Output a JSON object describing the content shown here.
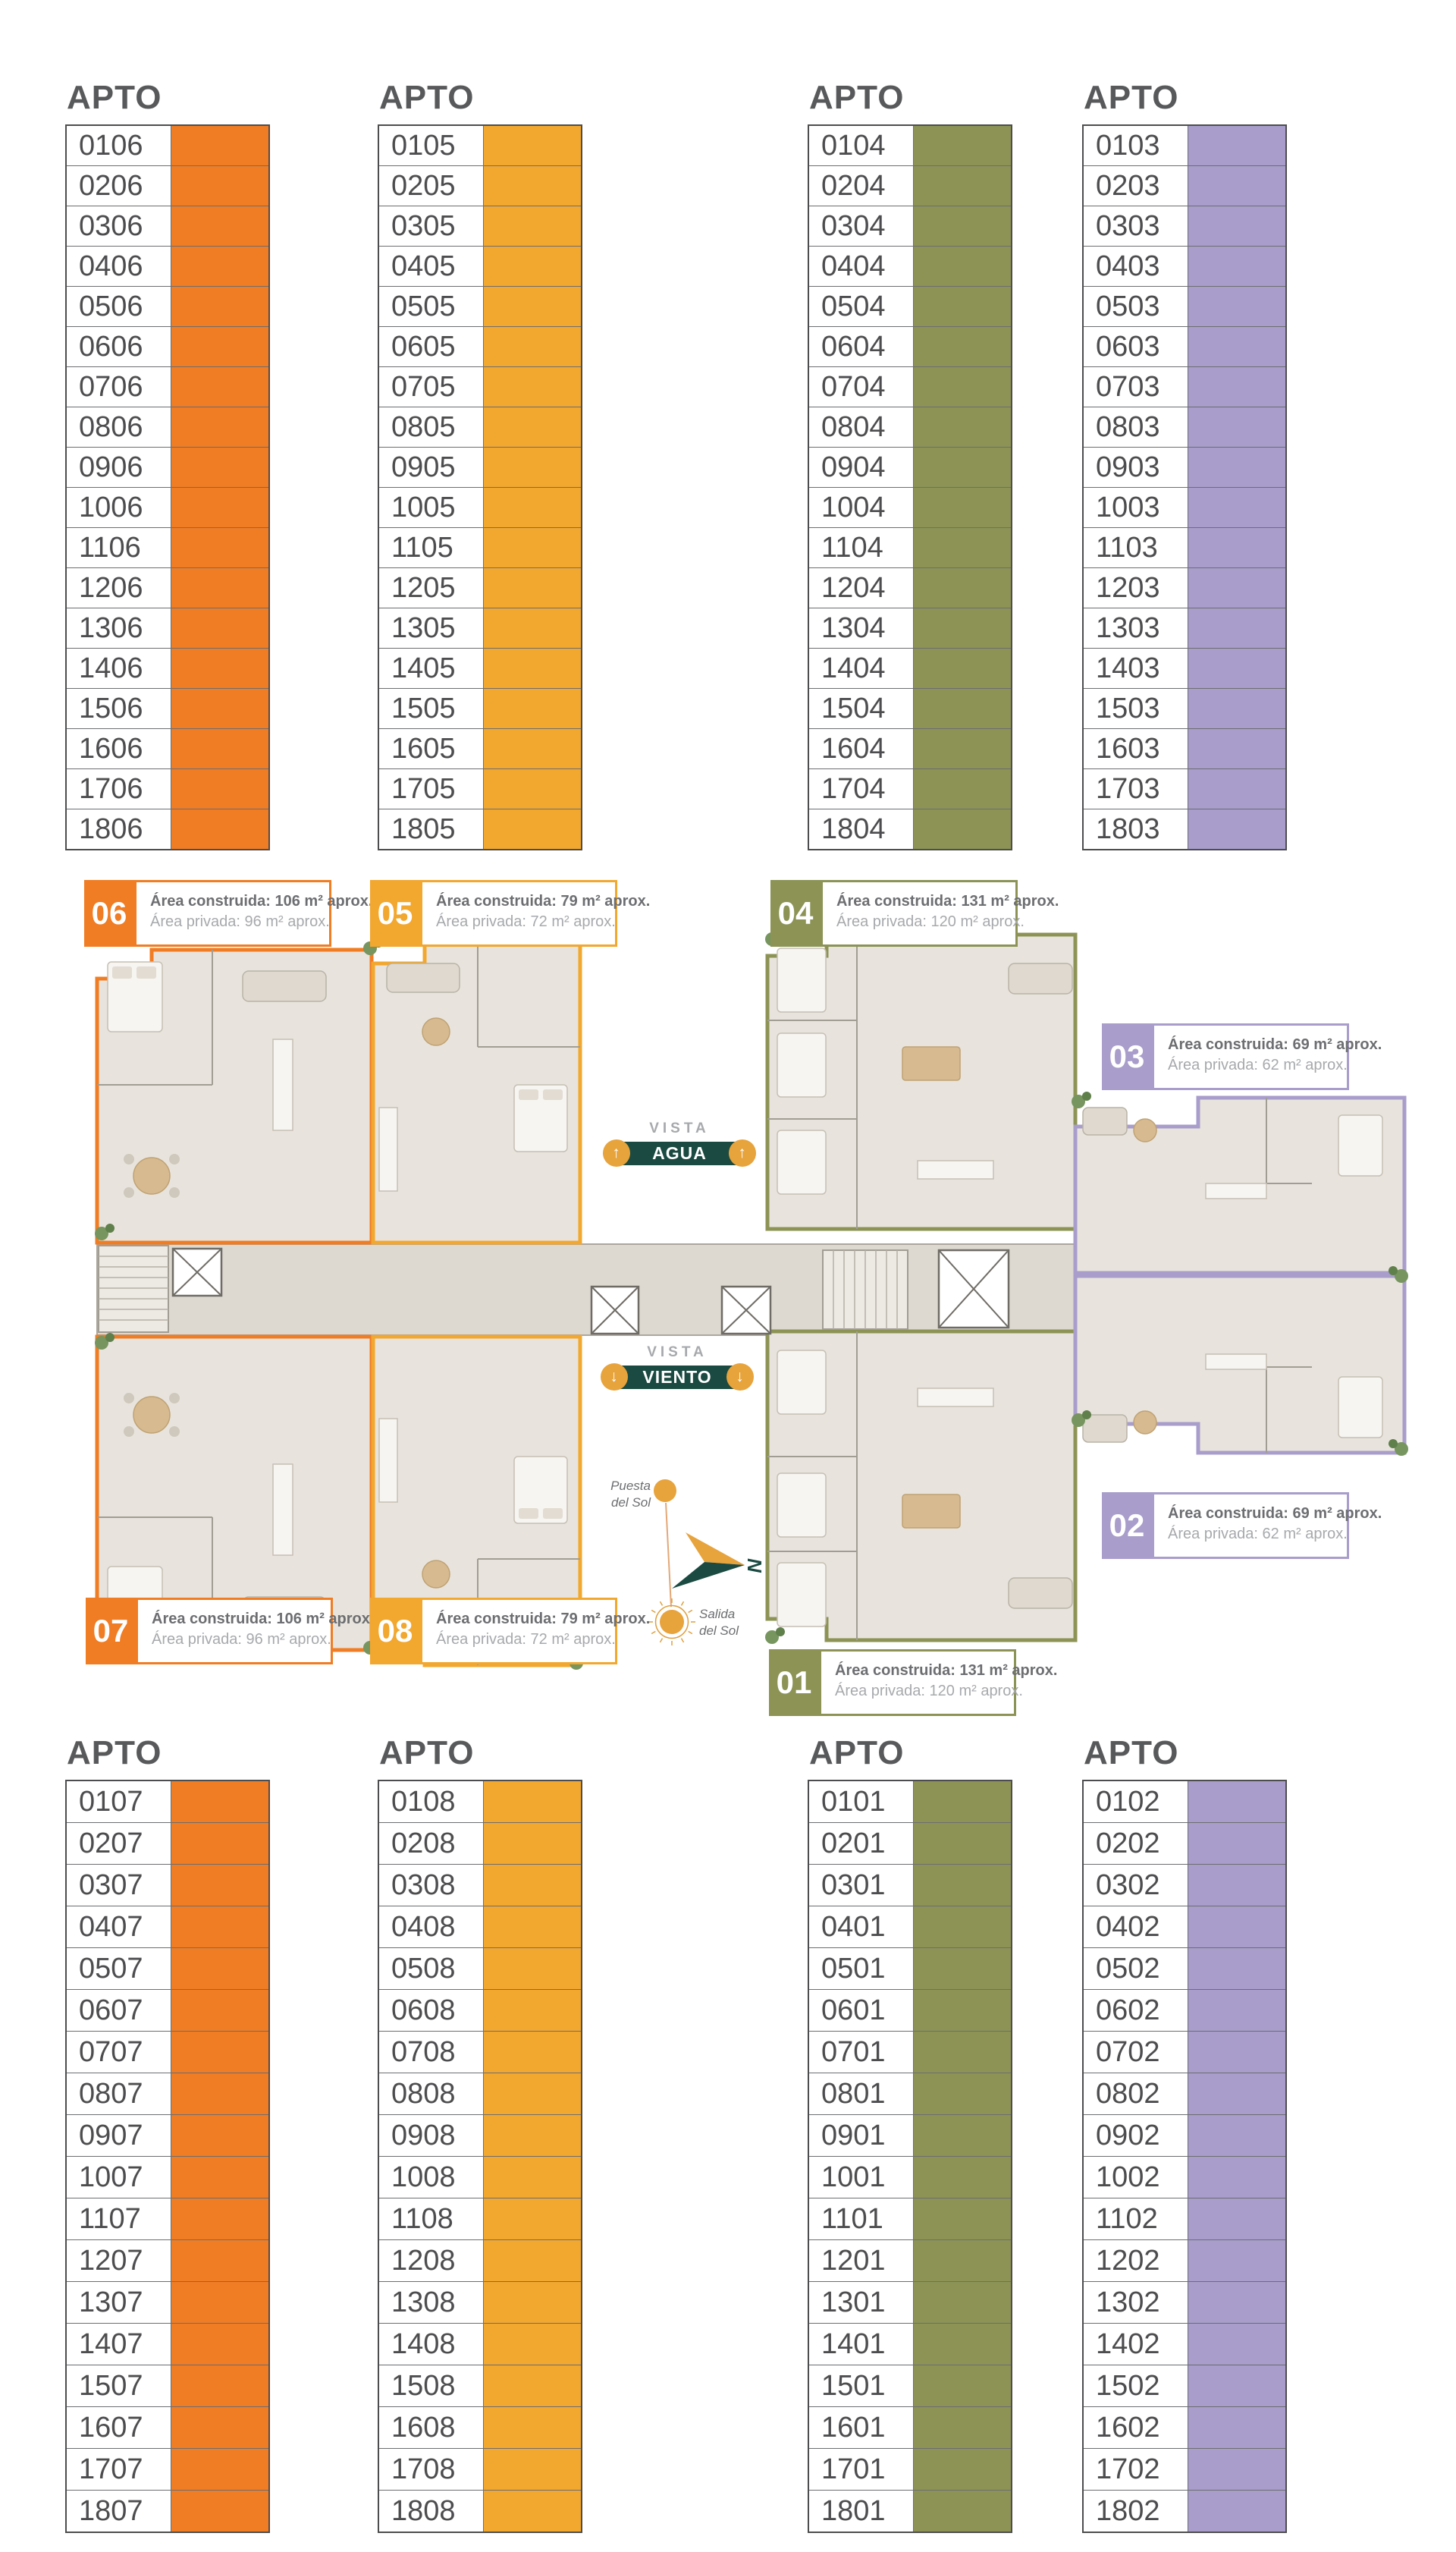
{
  "header_label": "APTO",
  "palette": {
    "orange": "#F07C23",
    "amber": "#F2A72F",
    "green": "#8C9355",
    "purple": "#A89DCB",
    "teal": "#1A4A41",
    "arrow_orange": "#E7A33C",
    "header_gray": "#58595B",
    "number_gray": "#4D4D4F"
  },
  "stacks_top": [
    {
      "unit": "06",
      "color": "#F07C23",
      "apartments": [
        "0106",
        "0206",
        "0306",
        "0406",
        "0506",
        "0606",
        "0706",
        "0806",
        "0906",
        "1006",
        "1106",
        "1206",
        "1306",
        "1406",
        "1506",
        "1606",
        "1706",
        "1806"
      ]
    },
    {
      "unit": "05",
      "color": "#F2A72F",
      "apartments": [
        "0105",
        "0205",
        "0305",
        "0405",
        "0505",
        "0605",
        "0705",
        "0805",
        "0905",
        "1005",
        "1105",
        "1205",
        "1305",
        "1405",
        "1505",
        "1605",
        "1705",
        "1805"
      ]
    },
    {
      "unit": "04",
      "color": "#8C9355",
      "apartments": [
        "0104",
        "0204",
        "0304",
        "0404",
        "0504",
        "0604",
        "0704",
        "0804",
        "0904",
        "1004",
        "1104",
        "1204",
        "1304",
        "1404",
        "1504",
        "1604",
        "1704",
        "1804"
      ]
    },
    {
      "unit": "03",
      "color": "#A89DCB",
      "apartments": [
        "0103",
        "0203",
        "0303",
        "0403",
        "0503",
        "0603",
        "0703",
        "0803",
        "0903",
        "1003",
        "1103",
        "1203",
        "1303",
        "1403",
        "1503",
        "1603",
        "1703",
        "1803"
      ]
    }
  ],
  "stacks_bottom": [
    {
      "unit": "07",
      "color": "#F07C23",
      "apartments": [
        "0107",
        "0207",
        "0307",
        "0407",
        "0507",
        "0607",
        "0707",
        "0807",
        "0907",
        "1007",
        "1107",
        "1207",
        "1307",
        "1407",
        "1507",
        "1607",
        "1707",
        "1807"
      ]
    },
    {
      "unit": "08",
      "color": "#F2A72F",
      "apartments": [
        "0108",
        "0208",
        "0308",
        "0408",
        "0508",
        "0608",
        "0708",
        "0808",
        "0908",
        "1008",
        "1108",
        "1208",
        "1308",
        "1408",
        "1508",
        "1608",
        "1708",
        "1808"
      ]
    },
    {
      "unit": "01",
      "color": "#8C9355",
      "apartments": [
        "0101",
        "0201",
        "0301",
        "0401",
        "0501",
        "0601",
        "0701",
        "0801",
        "0901",
        "1001",
        "1101",
        "1201",
        "1301",
        "1401",
        "1501",
        "1601",
        "1701",
        "1801"
      ]
    },
    {
      "unit": "02",
      "color": "#A89DCB",
      "apartments": [
        "0102",
        "0202",
        "0302",
        "0402",
        "0502",
        "0602",
        "0702",
        "0802",
        "0902",
        "1002",
        "1102",
        "1202",
        "1302",
        "1402",
        "1502",
        "1602",
        "1702",
        "1802"
      ]
    }
  ],
  "plan_labels": [
    {
      "number": "06",
      "color": "#F07C23",
      "construida": "Área construida: 106 m² aprox.",
      "privada": "Área privada: 96 m² aprox."
    },
    {
      "number": "05",
      "color": "#F2A72F",
      "construida": "Área construida: 79 m² aprox.",
      "privada": "Área privada: 72 m² aprox."
    },
    {
      "number": "04",
      "color": "#8C9355",
      "construida": "Área construida: 131 m² aprox.",
      "privada": "Área privada: 120 m² aprox."
    },
    {
      "number": "03",
      "color": "#A89DCB",
      "construida": "Área construida: 69 m² aprox.",
      "privada": "Área privada: 62 m² aprox."
    },
    {
      "number": "02",
      "color": "#A89DCB",
      "construida": "Área construida: 69 m² aprox.",
      "privada": "Área privada: 62 m² aprox."
    },
    {
      "number": "01",
      "color": "#8C9355",
      "construida": "Área construida: 131 m² aprox.",
      "privada": "Área privada: 120 m² aprox."
    },
    {
      "number": "07",
      "color": "#F07C23",
      "construida": "Área construida: 106 m² aprox.",
      "privada": "Área privada: 96 m² aprox."
    },
    {
      "number": "08",
      "color": "#F2A72F",
      "construida": "Área construida: 79 m² aprox.",
      "privada": "Área privada: 72 m² aprox."
    }
  ],
  "vistas": [
    {
      "id": "agua",
      "eyebrow": "VISTA",
      "label": "AGUA",
      "arrow": "↑"
    },
    {
      "id": "viento",
      "eyebrow": "VISTA",
      "label": "VIENTO",
      "arrow": "↓"
    }
  ],
  "compass": {
    "north": "N",
    "puesta": "Puesta\ndel Sol",
    "salida": "Salida\ndel Sol"
  }
}
